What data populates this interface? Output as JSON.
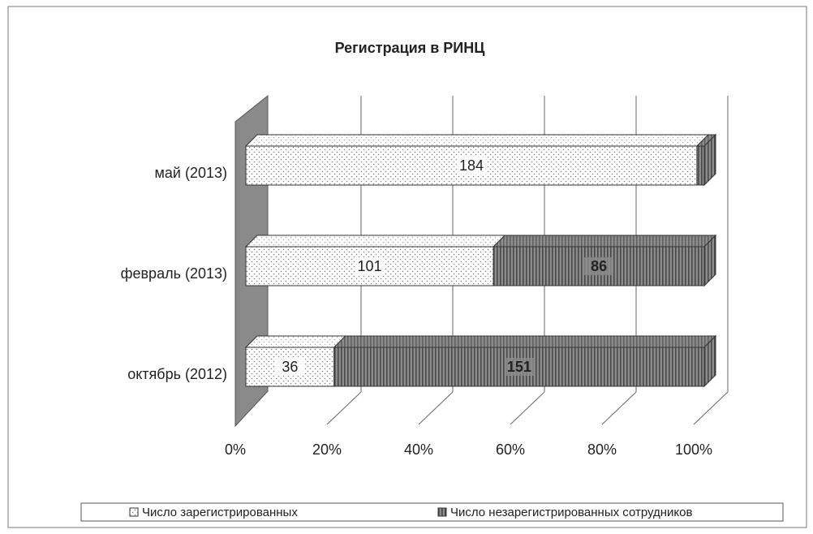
{
  "chart_data": {
    "type": "bar",
    "orientation": "horizontal",
    "stacked": "percent",
    "title": "Регистрация в РИНЦ",
    "categories": [
      "октябрь (2012)",
      "февраль (2013)",
      "май (2013)"
    ],
    "series": [
      {
        "name": "Число зарегистрированных",
        "color": "#ffffff",
        "values": [
          36,
          101,
          184
        ]
      },
      {
        "name": "Число незарегистрированных сотрудников",
        "color": "#8c8c8c",
        "values": [
          151,
          86,
          3
        ]
      }
    ],
    "xlim": [
      0,
      100
    ],
    "xticks": [
      {
        "value": 0,
        "label": "0%"
      },
      {
        "value": 20,
        "label": "20%"
      },
      {
        "value": 40,
        "label": "40%"
      },
      {
        "value": 60,
        "label": "60%"
      },
      {
        "value": 80,
        "label": "80%"
      },
      {
        "value": 100,
        "label": "100%"
      }
    ],
    "grid": true,
    "legend": "bottom"
  }
}
